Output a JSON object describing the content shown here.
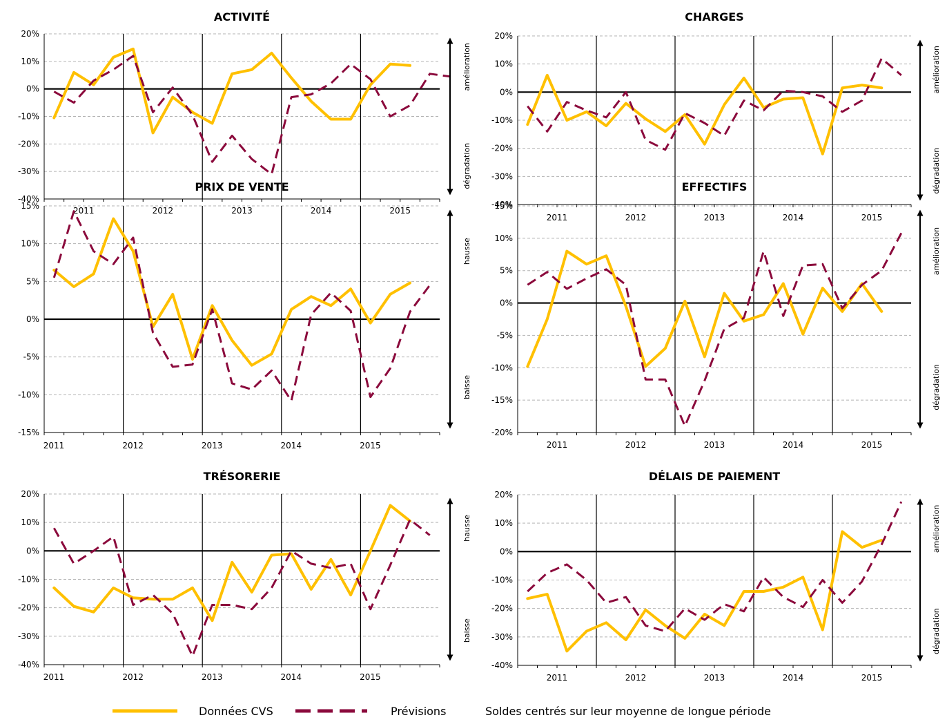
{
  "legend": {
    "cvs_label": "Données CVS",
    "prev_label": "Prévisions",
    "note": "Soldes centrés sur leur moyenne de longue période"
  },
  "colors": {
    "cvs": "#FFC000",
    "prev": "#8B0A3C"
  },
  "chart_data": [
    {
      "type": "line",
      "title": "ACTIVITÉ",
      "ylim": [
        -40,
        20
      ],
      "ystep": 10,
      "unit": "%",
      "side_top": "amélioration",
      "side_bottom": "dégradation",
      "years": [
        "2011",
        "2012",
        "2013",
        "2014",
        "2015"
      ],
      "series": [
        {
          "name": "Données CVS",
          "values": [
            -10.5,
            6,
            1.5,
            11.5,
            14.5,
            -16,
            -3,
            -8.5,
            -12.5,
            5.5,
            7,
            13,
            4,
            -4.5,
            -11,
            -11,
            1.5,
            9,
            8.5
          ]
        },
        {
          "name": "Prévisions",
          "values": [
            -1,
            -5,
            3,
            7,
            12,
            -8.5,
            0.5,
            -9.5,
            -26.5,
            -17,
            -25.5,
            -31,
            -3,
            -2,
            2,
            9,
            3.5,
            -10,
            -6,
            5.5,
            4.5
          ]
        }
      ]
    },
    {
      "type": "line",
      "title": "CHARGES",
      "ylim": [
        -40,
        20
      ],
      "ystep": 10,
      "unit": "%",
      "side_top": "amélioration",
      "side_bottom": "dégradation",
      "years": [
        "2011",
        "2012",
        "2013",
        "2014",
        "2015"
      ],
      "series": [
        {
          "name": "Données CVS",
          "values": [
            -11.5,
            6,
            -10,
            -7,
            -12,
            -4,
            -9.5,
            -14,
            -8,
            -18.5,
            -4.5,
            5,
            -5.5,
            -2.5,
            -2,
            -22,
            1.5,
            2.5,
            1.5
          ]
        },
        {
          "name": "Prévisions",
          "values": [
            -5,
            -14,
            -3.5,
            -6.5,
            -9,
            0,
            -17,
            -20.5,
            -7.5,
            -11,
            -15.5,
            -3,
            -6.5,
            0.5,
            0,
            -1.5,
            -7,
            -3,
            12,
            6
          ]
        }
      ]
    },
    {
      "type": "line",
      "title": "PRIX DE VENTE",
      "ylim": [
        -15,
        15
      ],
      "ystep": 5,
      "unit": "%",
      "side_top": "hausse",
      "side_bottom": "baisse",
      "years": [
        "2011",
        "2012",
        "2013",
        "2014",
        "2015"
      ],
      "series": [
        {
          "name": "Données CVS",
          "values": [
            6.5,
            4.3,
            6,
            13.3,
            9,
            -1,
            3.3,
            -5.3,
            1.8,
            -2.8,
            -6.1,
            -4.6,
            1.3,
            3,
            1.8,
            4,
            -0.5,
            3.3,
            4.8
          ]
        },
        {
          "name": "Prévisions",
          "values": [
            5.5,
            14.3,
            9,
            7.3,
            10.8,
            -1.8,
            -6.3,
            -6,
            1.3,
            -8.5,
            -9.3,
            -6.8,
            -10.8,
            0.6,
            3.5,
            1.1,
            -10.3,
            -6.5,
            1,
            4.5
          ]
        }
      ]
    },
    {
      "type": "line",
      "title": "EFFECTIFS",
      "ylim": [
        -20,
        15
      ],
      "ystep": 5,
      "unit": "%",
      "side_top": "amélioration",
      "side_bottom": "dégradation",
      "years": [
        "2011",
        "2012",
        "2013",
        "2014",
        "2015"
      ],
      "series": [
        {
          "name": "Données CVS",
          "values": [
            -9.8,
            -2.5,
            8,
            6,
            7.3,
            -0.5,
            -9.8,
            -7,
            0.3,
            -8.3,
            1.5,
            -2.8,
            -1.8,
            3,
            -4.8,
            2.3,
            -1.3,
            3,
            -1.3
          ]
        },
        {
          "name": "Prévisions",
          "values": [
            2.8,
            4.8,
            2.2,
            3.8,
            5.2,
            2.8,
            -11.8,
            -11.8,
            -19,
            -12,
            -4,
            -2.3,
            8,
            -2,
            5.8,
            6,
            -0.8,
            2.8,
            5,
            10.8
          ]
        }
      ]
    },
    {
      "type": "line",
      "title": "TRÉSORERIE",
      "ylim": [
        -40,
        20
      ],
      "ystep": 10,
      "unit": "%",
      "side_top": "hausse",
      "side_bottom": "baisse",
      "years": [
        "2011",
        "2012",
        "2013",
        "2014",
        "2015"
      ],
      "series": [
        {
          "name": "Données CVS",
          "values": [
            -13,
            -19.5,
            -21.5,
            -13,
            -16.5,
            -17,
            -17,
            -13,
            -24.5,
            -4,
            -14.5,
            -1.5,
            -1,
            -13.5,
            -3,
            -15.5,
            0,
            16,
            10.5
          ]
        },
        {
          "name": "Prévisions",
          "values": [
            8,
            -4.5,
            0,
            5,
            -19,
            -15.5,
            -22,
            -37,
            -19,
            -19,
            -20.5,
            -13,
            0,
            -4.5,
            -6,
            -4.5,
            -20.5,
            -5,
            11,
            5.5
          ]
        }
      ]
    },
    {
      "type": "line",
      "title": "DÉLAIS DE PAIEMENT",
      "ylim": [
        -40,
        20
      ],
      "ystep": 10,
      "unit": "%",
      "side_top": "amélioration",
      "side_bottom": "dégradation",
      "years": [
        "2011",
        "2012",
        "2013",
        "2014",
        "2015"
      ],
      "series": [
        {
          "name": "Données CVS",
          "values": [
            -16.5,
            -15,
            -35,
            -28,
            -25,
            -31,
            -20.5,
            -26,
            -30.5,
            -22,
            -26,
            -14,
            -14,
            -12.5,
            -9,
            -27.5,
            7,
            1.5,
            4
          ]
        },
        {
          "name": "Prévisions",
          "values": [
            -14,
            -7.5,
            -4.5,
            -10,
            -18,
            -16,
            -26,
            -28,
            -20,
            -24,
            -18.5,
            -21,
            -9,
            -16,
            -19.5,
            -10,
            -18,
            -10.5,
            2.5,
            17.5
          ]
        }
      ]
    }
  ]
}
